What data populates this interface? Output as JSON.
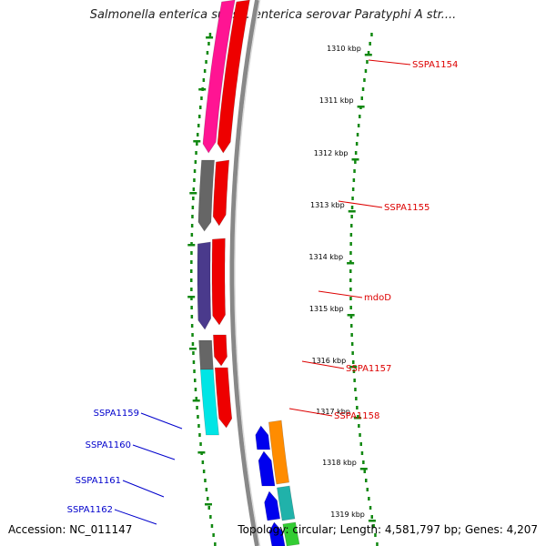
{
  "title": "Salmonella enterica subsp. enterica serovar Paratyphi A str....",
  "accession": "Accession: NC_011147",
  "topology": "Topology: circular; Length: 4,581,797 bp; Genes: 4,207",
  "scale_ticks": [
    {
      "label": "1310 kbp"
    },
    {
      "label": "1311 kbp"
    },
    {
      "label": "1312 kbp"
    },
    {
      "label": "1313 kbp"
    },
    {
      "label": "1314 kbp"
    },
    {
      "label": "1315 kbp"
    },
    {
      "label": "1316 kbp"
    },
    {
      "label": "1317 kbp"
    },
    {
      "label": "1318 kbp"
    },
    {
      "label": "1319 kbp"
    }
  ],
  "gene_labels": [
    {
      "name": "SSPA1154",
      "color": "#dd0000"
    },
    {
      "name": "SSPA1155",
      "color": "#dd0000"
    },
    {
      "name": "mdoD",
      "color": "#dd0000"
    },
    {
      "name": "SSPA1157",
      "color": "#dd0000"
    },
    {
      "name": "SSPA1158",
      "color": "#dd0000"
    },
    {
      "name": "SSPA1159",
      "color": "#0000cc"
    },
    {
      "name": "SSPA1160",
      "color": "#0000cc"
    },
    {
      "name": "SSPA1161",
      "color": "#0000cc"
    },
    {
      "name": "SSPA1162",
      "color": "#0000cc"
    }
  ],
  "colors": {
    "forward_strand": "#ee0000",
    "reverse_strand": "#0000ee",
    "backbone": "#888888",
    "ticks": "#118811",
    "magenta": "#ff1493",
    "gray": "#666666",
    "purple": "#4a3a8c",
    "cyan": "#00e5e5",
    "orange": "#ff8c00",
    "teal": "#20b2aa",
    "green": "#33cc33"
  }
}
